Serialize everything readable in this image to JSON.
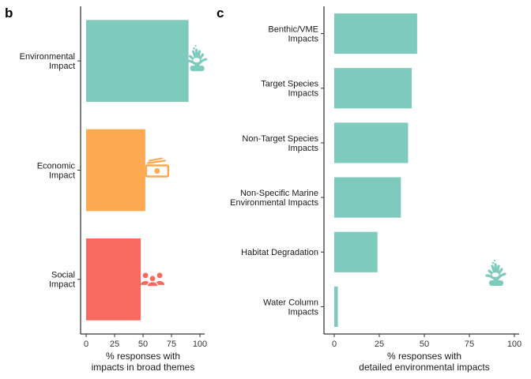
{
  "chart_data": [
    {
      "panel": "b",
      "type": "bar",
      "orientation": "horizontal",
      "categories": [
        [
          "Environmental",
          "Impact"
        ],
        [
          "Economic",
          "Impact"
        ],
        [
          "Social",
          "Impact"
        ]
      ],
      "values": [
        90,
        52,
        48
      ],
      "colors": [
        "#7ecbbd",
        "#fca94f",
        "#f8695e"
      ],
      "icons": [
        "coral-icon",
        "money-icon",
        "people-icon"
      ],
      "xlabel": [
        "% responses with",
        "impacts in broad themes"
      ],
      "xlim": [
        0,
        100
      ],
      "xticks": [
        0,
        25,
        50,
        75,
        100
      ]
    },
    {
      "panel": "c",
      "type": "bar",
      "orientation": "horizontal",
      "categories": [
        [
          "Benthic/VME",
          "Impacts"
        ],
        [
          "Target Species",
          "Impacts"
        ],
        [
          "Non-Target Species",
          "Impacts"
        ],
        [
          "Non-Specific Marine",
          "Environmental Impacts"
        ],
        [
          "Habitat Degradation"
        ],
        [
          "Water Column",
          "Impacts"
        ]
      ],
      "values": [
        46,
        43,
        41,
        37,
        24,
        2
      ],
      "colors": [
        "#7ecbbd",
        "#7ecbbd",
        "#7ecbbd",
        "#7ecbbd",
        "#7ecbbd",
        "#7ecbbd"
      ],
      "icons": [
        "coral-icon"
      ],
      "xlabel": [
        "% responses with",
        "detailed environmental impacts"
      ],
      "xlim": [
        0,
        100
      ],
      "xticks": [
        0,
        25,
        50,
        75,
        100
      ]
    }
  ]
}
